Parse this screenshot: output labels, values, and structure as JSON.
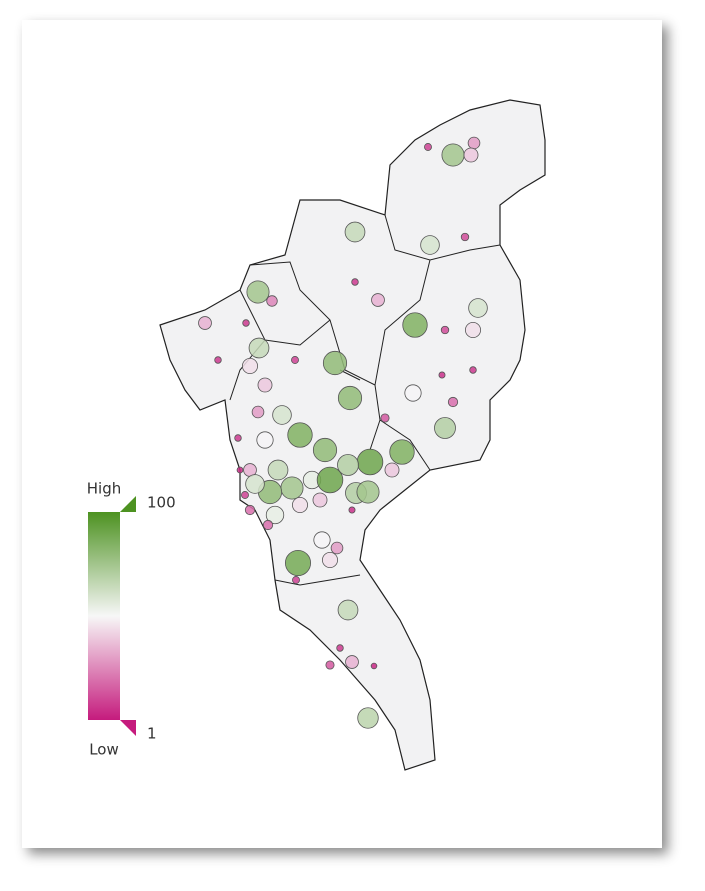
{
  "legend": {
    "high_label": "High",
    "low_label": "Low",
    "max": 100,
    "min": 1,
    "colors": [
      "#c51b7d",
      "#f7f7f7",
      "#4d9221"
    ]
  },
  "bubbles": {
    "values": [
      75,
      30,
      40,
      10,
      65,
      60,
      12,
      8,
      35,
      75,
      25,
      35,
      8,
      85,
      60,
      45,
      12,
      65,
      8,
      80,
      45,
      10,
      40,
      80,
      50,
      8,
      6,
      20,
      60,
      30,
      70,
      85,
      50,
      8,
      80,
      90,
      85,
      70,
      55,
      65,
      35,
      75,
      90,
      80,
      60,
      45,
      40,
      70,
      75,
      40,
      20,
      55,
      50,
      30,
      88,
      10,
      45,
      65,
      8,
      35,
      15,
      4,
      68,
      5,
      10,
      20,
      6,
      15
    ]
  }
}
